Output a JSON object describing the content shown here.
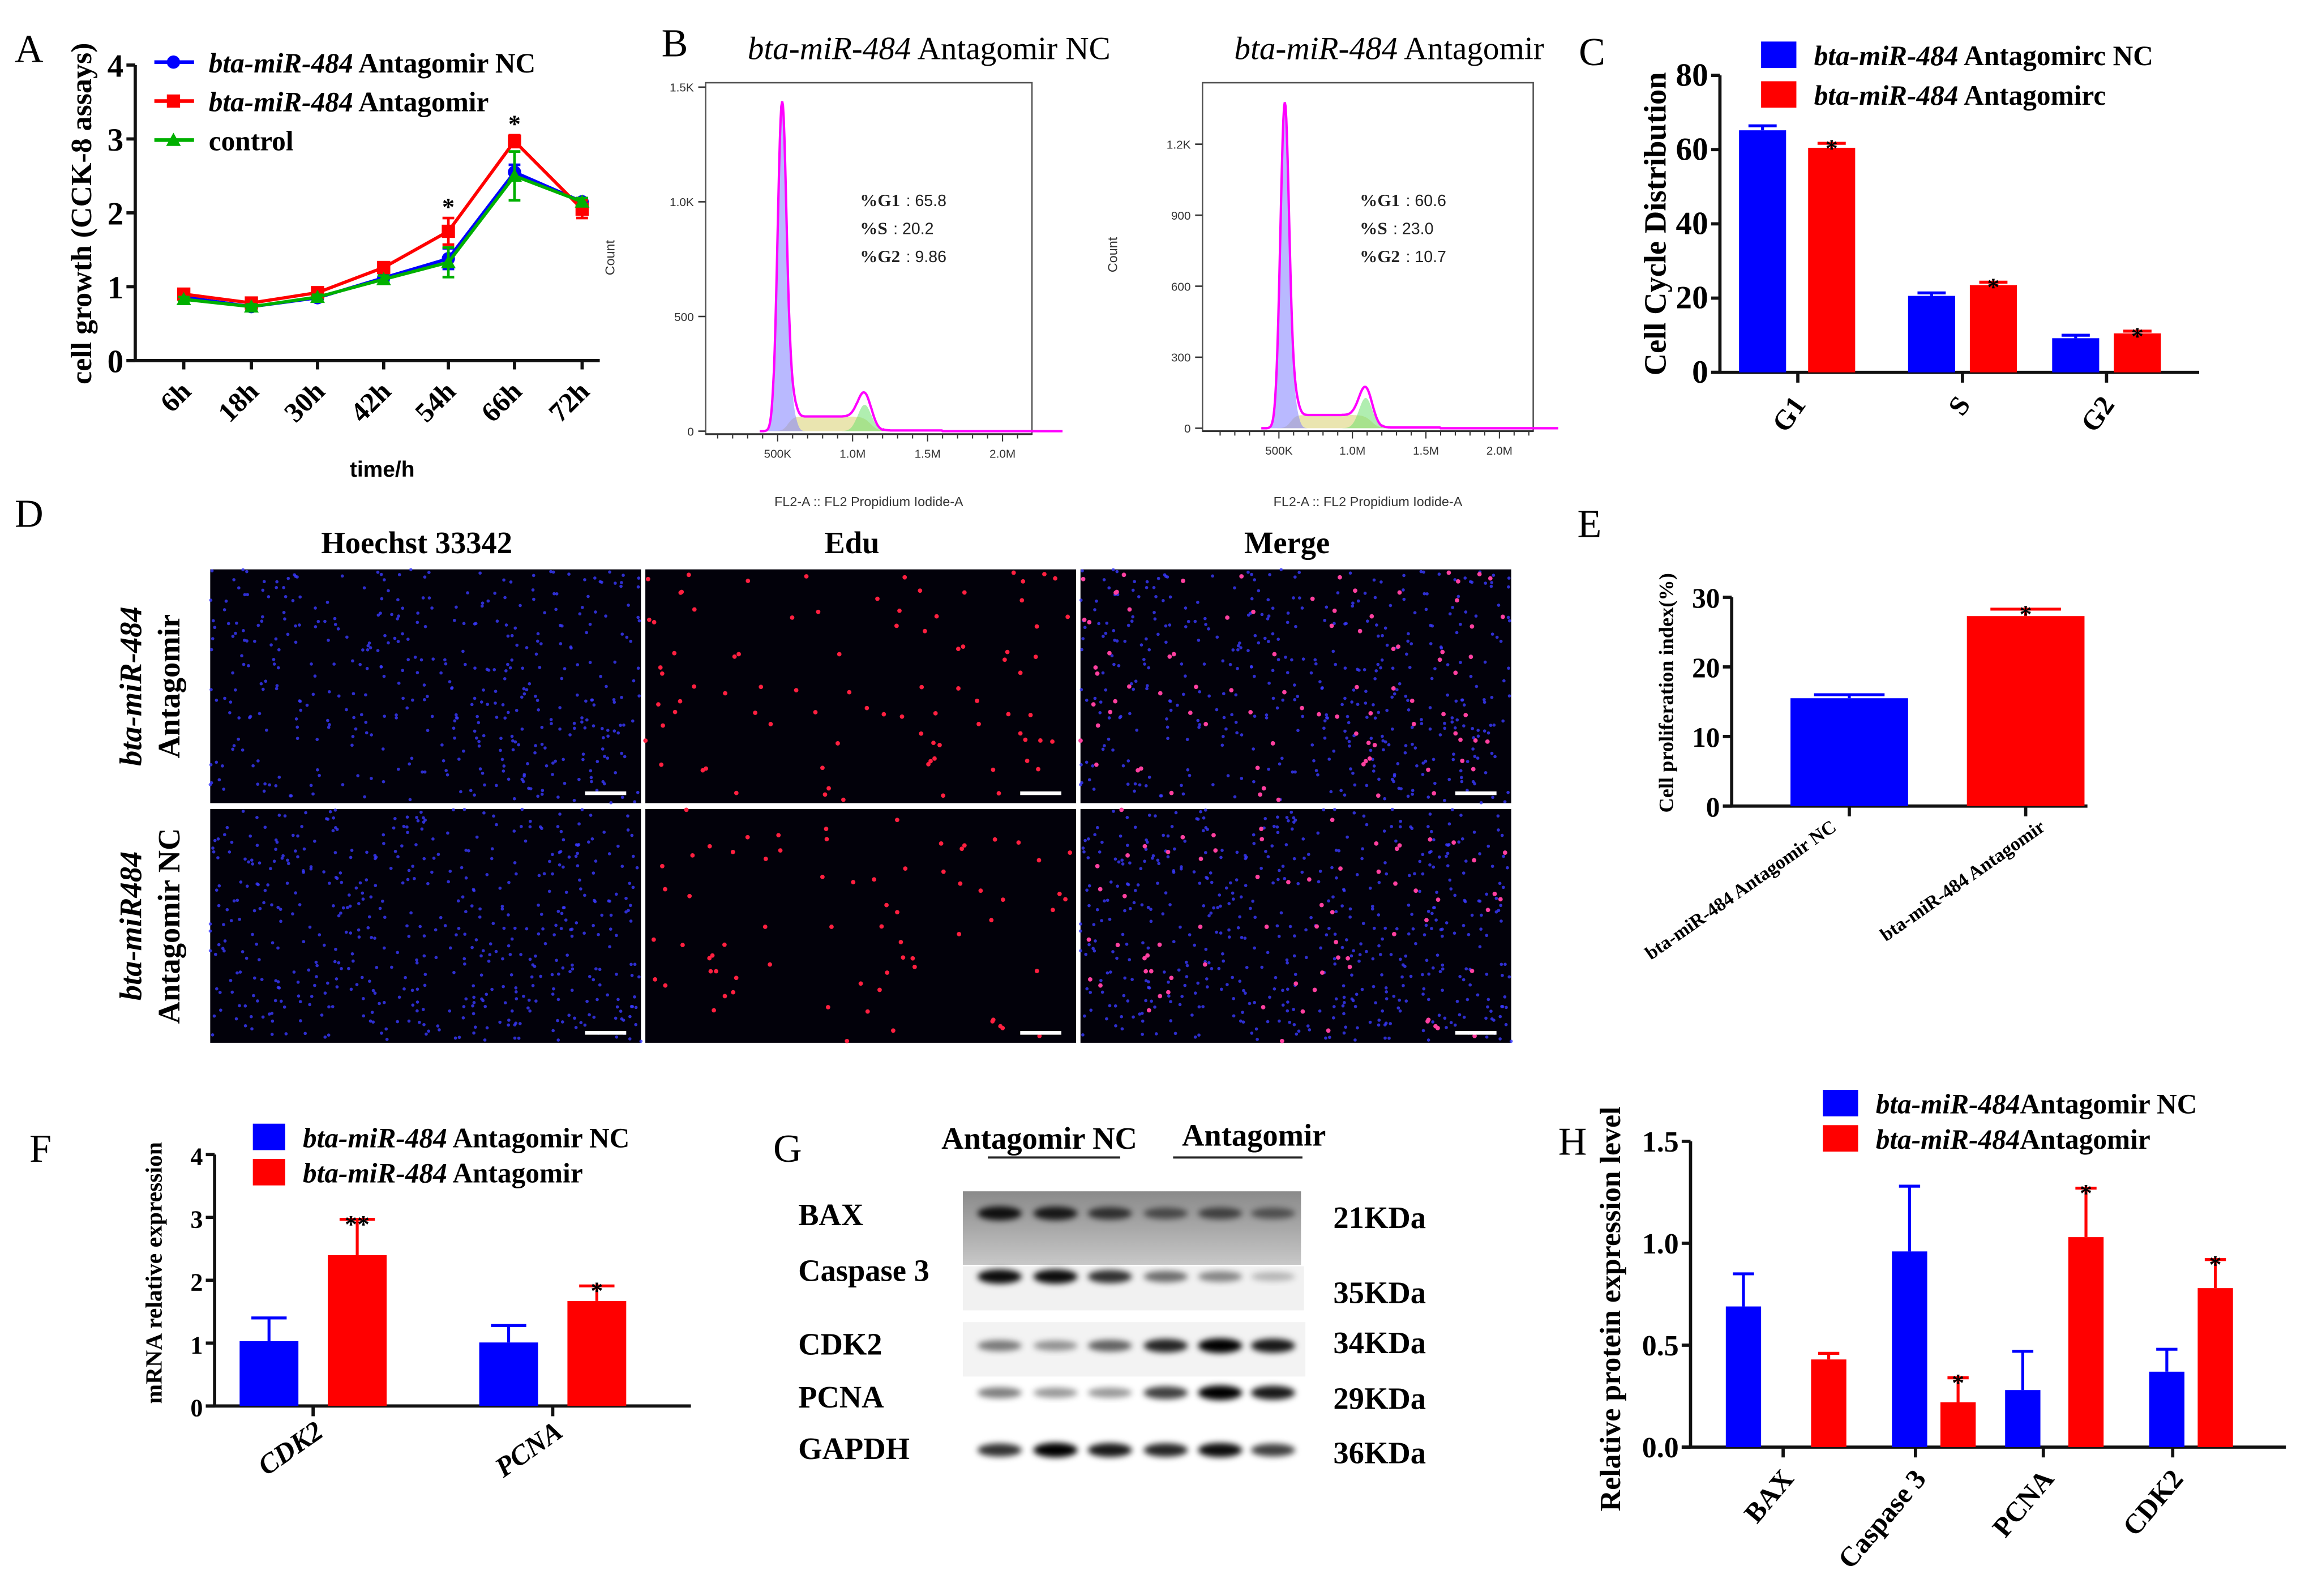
{
  "colors": {
    "nc": "#0000ff",
    "antagomir": "#ff0000",
    "control": "#00b000",
    "histogram_line": "#ff00ff"
  },
  "panel_labels": {
    "a": "A",
    "b": "B",
    "c": "C",
    "d": "D",
    "e": "E",
    "f": "F",
    "g": "G",
    "h": "H"
  },
  "chart_data": [
    {
      "id": "A",
      "type": "line",
      "ylabel": "cell growth (CCK-8 assays)",
      "xlabel": "time/h",
      "ylim": [
        0,
        4
      ],
      "yticks": [
        "0",
        "1",
        "2",
        "3",
        "4"
      ],
      "categories": [
        "6h",
        "18h",
        "30h",
        "42h",
        "54h",
        "66h",
        "72h"
      ],
      "legend_position": "top-left",
      "series": [
        {
          "name_italic": "bta-miR-484",
          "name_rest": " Antagomir NC",
          "marker": "circle",
          "color": "#0000ff",
          "values": [
            0.86,
            0.73,
            0.85,
            1.12,
            1.38,
            2.55,
            2.15
          ],
          "errors": [
            0.04,
            0.03,
            0.04,
            0.05,
            0.14,
            0.1,
            0.05
          ]
        },
        {
          "name_italic": "bta-miR-484",
          "name_rest": " Antagomir",
          "marker": "square",
          "color": "#ff0000",
          "values": [
            0.9,
            0.78,
            0.92,
            1.26,
            1.75,
            2.97,
            2.05
          ],
          "errors": [
            0.04,
            0.03,
            0.04,
            0.05,
            0.18,
            0.08,
            0.12
          ]
        },
        {
          "name_italic": "",
          "name_rest": "control",
          "marker": "triangle",
          "color": "#00b000",
          "values": [
            0.83,
            0.73,
            0.86,
            1.1,
            1.33,
            2.5,
            2.15
          ],
          "errors": [
            0.03,
            0.03,
            0.03,
            0.05,
            0.2,
            0.33,
            0.05
          ]
        }
      ],
      "annotations": [
        {
          "category": "54h",
          "text": "*"
        },
        {
          "category": "66h",
          "text": "*"
        }
      ]
    },
    {
      "id": "B-NC",
      "type": "area",
      "title_italic": "bta-miR-484",
      "title_rest": " Antagomir NC",
      "xlabel": "FL2-A :: FL2 Propidium Iodide-A",
      "ylabel": "Count",
      "xticks": [
        "500K",
        "1.0M",
        "1.5M",
        "2.0M"
      ],
      "xtick_values": [
        500000,
        1000000,
        1500000,
        2000000
      ],
      "yticks": [
        "0",
        "500",
        "1.0K",
        "1.5K"
      ],
      "ytick_values": [
        0,
        500,
        1000,
        1500
      ],
      "g1_peak": {
        "x": 530000,
        "count": 1430
      },
      "s_plateau_count": 64,
      "g2_peak": {
        "x": 1080000,
        "count": 115
      },
      "stats": [
        {
          "label": "%G1",
          "value": ": 65.8"
        },
        {
          "label": "%S",
          "value": ": 20.2"
        },
        {
          "label": "%G2",
          "value": ": 9.86"
        }
      ]
    },
    {
      "id": "B-Antagomir",
      "type": "area",
      "title_italic": "bta-miR-484",
      "title_rest": " Antagomir",
      "xlabel": "FL2-A :: FL2 Propidium Iodide-A",
      "ylabel": "Count",
      "xticks": [
        "500K",
        "1.0M",
        "1.5M",
        "2.0M"
      ],
      "xtick_values": [
        500000,
        1000000,
        1500000,
        2000000
      ],
      "yticks": [
        "0",
        "300",
        "600",
        "900",
        "1.2K"
      ],
      "ytick_values": [
        0,
        300,
        600,
        900,
        1200
      ],
      "g1_peak": {
        "x": 540000,
        "count": 1370
      },
      "s_plateau_count": 56,
      "g2_peak": {
        "x": 1090000,
        "count": 128
      },
      "stats": [
        {
          "label": "%G1",
          "value": ": 60.6"
        },
        {
          "label": "%S",
          "value": ": 23.0"
        },
        {
          "label": "%G2",
          "value": ": 10.7"
        }
      ]
    },
    {
      "id": "C",
      "type": "bar",
      "ylabel": "Cell Cycle Distribution",
      "ylim": [
        0,
        80
      ],
      "yticks": [
        "0",
        "20",
        "40",
        "60",
        "80"
      ],
      "categories": [
        "G1",
        "S",
        "G2"
      ],
      "series": [
        {
          "name_italic": "bta-miR-484",
          "name_rest": " Antagomirc NC",
          "color": "#0000ff",
          "values": [
            65.2,
            20.6,
            9.2
          ],
          "errors": [
            1.2,
            0.8,
            0.8
          ]
        },
        {
          "name_italic": "bta-miR-484",
          "name_rest": " Antagomirc",
          "color": "#ff0000",
          "values": [
            60.5,
            23.5,
            10.5
          ],
          "errors": [
            1.2,
            0.8,
            0.6
          ]
        }
      ],
      "significance": [
        [
          "",
          "*"
        ],
        [
          "",
          "*"
        ],
        [
          "",
          "*"
        ]
      ]
    },
    {
      "id": "E",
      "type": "bar",
      "ylabel": "Cell proliferation index(%)",
      "ylim": [
        0,
        30
      ],
      "yticks": [
        "0",
        "10",
        "20",
        "30"
      ],
      "categories": [
        "bta-miR-484 Antagomir NC",
        "bta-miR-484 Antagomir"
      ],
      "series": [
        {
          "name": "index",
          "colors": [
            "#0000ff",
            "#ff0000"
          ],
          "values": [
            15.5,
            27.3
          ],
          "errors": [
            0.5,
            1.0
          ]
        }
      ],
      "significance": [
        "",
        "*"
      ]
    },
    {
      "id": "F",
      "type": "bar",
      "ylabel": "mRNA relative expression",
      "ylim": [
        0,
        4
      ],
      "yticks": [
        "0",
        "1",
        "2",
        "3",
        "4"
      ],
      "categories": [
        "CDK2",
        "PCNA"
      ],
      "series": [
        {
          "name_italic": "bta-miR-484",
          "name_rest": " Antagomir NC",
          "color": "#0000ff",
          "values": [
            1.03,
            1.01
          ],
          "errors": [
            0.37,
            0.27
          ]
        },
        {
          "name_italic": "bta-miR-484",
          "name_rest": " Antagomir",
          "color": "#ff0000",
          "values": [
            2.4,
            1.67
          ],
          "errors": [
            0.57,
            0.24
          ]
        }
      ],
      "significance": [
        [
          "",
          "**"
        ],
        [
          "",
          "*"
        ]
      ]
    },
    {
      "id": "H",
      "type": "bar",
      "ylabel": "Relative protein expression level",
      "ylim": [
        0,
        1.5
      ],
      "yticks": [
        "0.0",
        "0.5",
        "1.0",
        "1.5"
      ],
      "categories": [
        "BAX",
        "Caspase 3",
        "PCNA",
        "CDK2"
      ],
      "series": [
        {
          "name_italic": "bta-miR-484",
          "name_rest": "Antagomir NC",
          "color": "#0000ff",
          "values": [
            0.69,
            0.96,
            0.28,
            0.37
          ],
          "errors": [
            0.16,
            0.32,
            0.19,
            0.11
          ]
        },
        {
          "name_italic": "bta-miR-484",
          "name_rest": "Antagomir",
          "color": "#ff0000",
          "values": [
            0.43,
            0.22,
            1.03,
            0.78
          ],
          "errors": [
            0.03,
            0.12,
            0.24,
            0.14
          ]
        }
      ],
      "significance": [
        [
          "",
          ""
        ],
        [
          "",
          "*"
        ],
        [
          "",
          "*"
        ],
        [
          "",
          "*"
        ]
      ]
    }
  ],
  "panel_d": {
    "columns": [
      "Hoechst 33342",
      "Edu",
      "Merge"
    ],
    "rows": [
      {
        "italic": "bta-miR-484",
        "rest": "Antagomir"
      },
      {
        "italic": "bta-miR484",
        "rest": "Antagomir NC"
      }
    ]
  },
  "panel_g": {
    "groups": [
      "Antagomir NC",
      "Antagomir"
    ],
    "bands": [
      {
        "label": "BAX",
        "kda": "21KDa"
      },
      {
        "label": "Caspase 3",
        "kda": "35KDa"
      },
      {
        "label": "CDK2",
        "kda": "34KDa"
      },
      {
        "label": "PCNA",
        "kda": "29KDa"
      },
      {
        "label": "GAPDH",
        "kda": "36KDa"
      }
    ]
  }
}
